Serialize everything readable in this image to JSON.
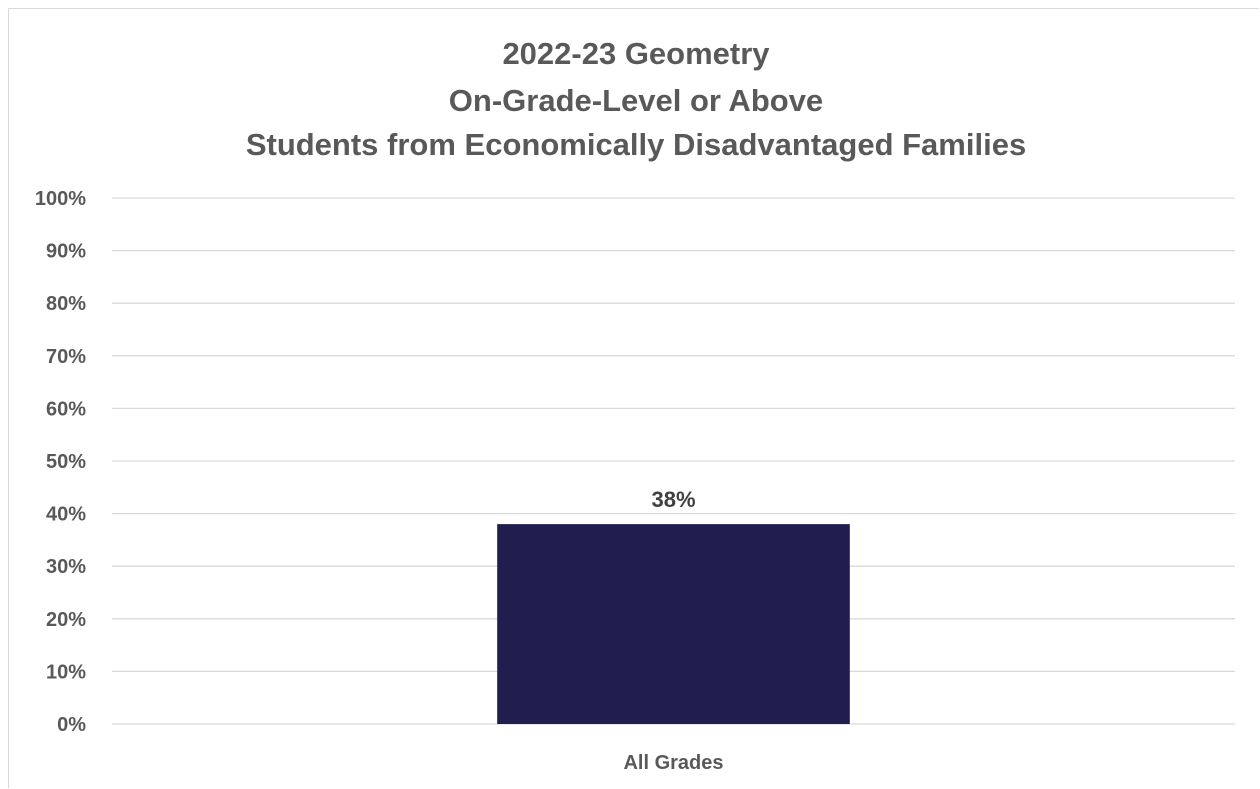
{
  "chart_data": {
    "type": "bar",
    "title_lines": [
      "2022-23 Geometry",
      "On-Grade-Level or Above",
      "Students from Economically Disadvantaged Families"
    ],
    "categories": [
      "All Grades"
    ],
    "values": [
      38
    ],
    "data_labels": [
      "38%"
    ],
    "yticks": [
      "0%",
      "10%",
      "20%",
      "30%",
      "40%",
      "50%",
      "60%",
      "70%",
      "80%",
      "90%",
      "100%"
    ],
    "ylim": [
      0,
      100
    ],
    "grid": true,
    "legend": "none",
    "bar_color": "#201d4f",
    "grid_color": "#d9d9d9"
  }
}
